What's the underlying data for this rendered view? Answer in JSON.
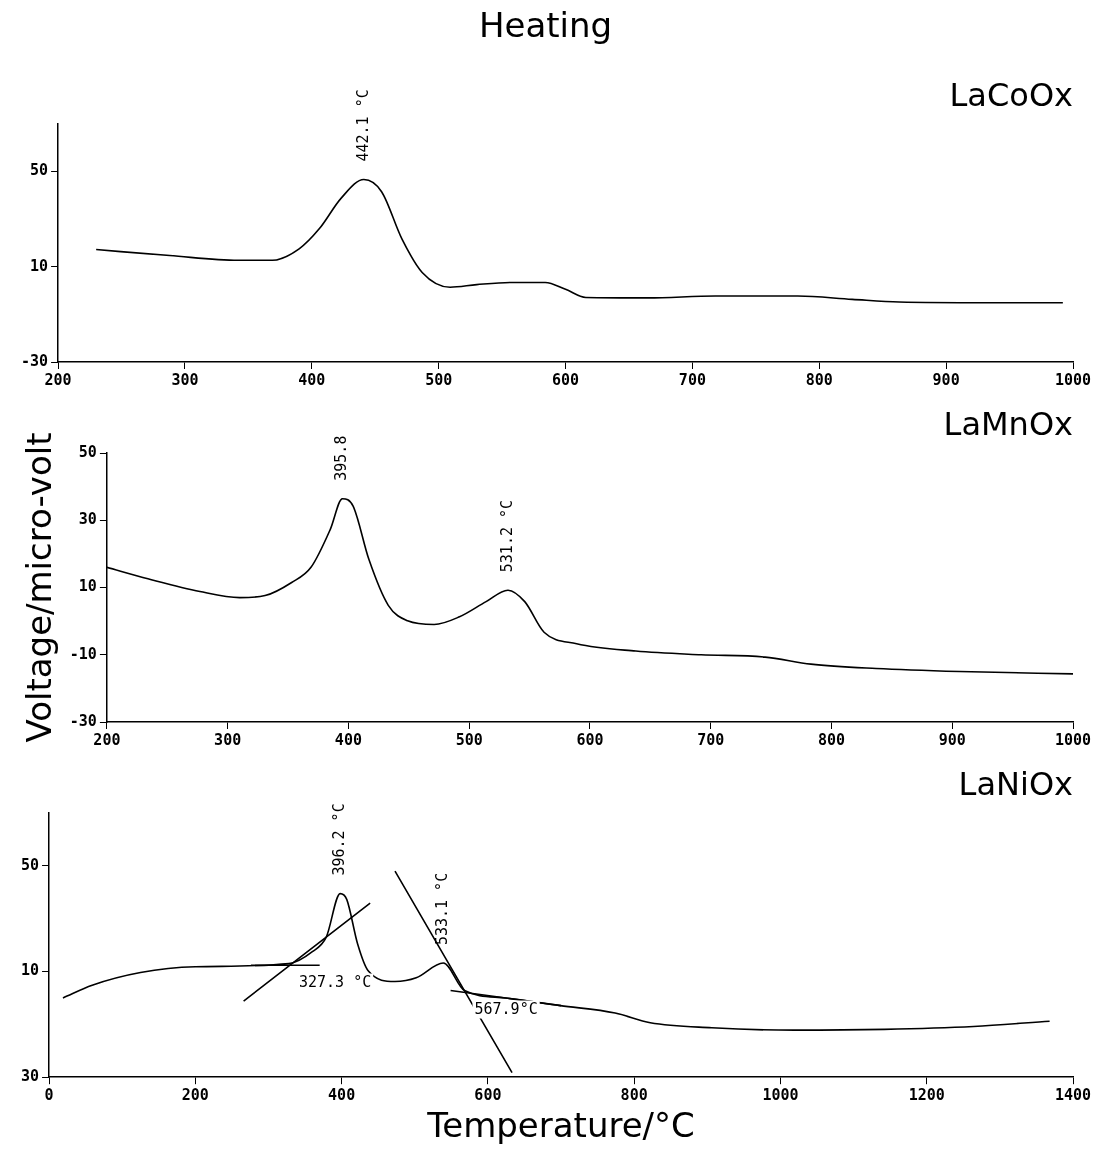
{
  "chart_data": [
    {
      "type": "line",
      "title": "Heating",
      "xlim": [
        200,
        1000
      ],
      "xticks": [
        200,
        300,
        400,
        500,
        600,
        700,
        800,
        900,
        1000
      ],
      "ylim": [
        -30,
        70
      ],
      "yticks": [
        -30,
        10,
        50
      ],
      "grid": false,
      "legend": false,
      "marker": "none",
      "line_style": "solid",
      "series": [
        {
          "name": "LaCoOx",
          "color": "#000000",
          "x": [
            230,
            288,
            342,
            369,
            390,
            406,
            423,
            441,
            455,
            471,
            487,
            509,
            530,
            557,
            584,
            600,
            616,
            665,
            718,
            783,
            826,
            863,
            933,
            992
          ],
          "values": [
            17.2,
            14.7,
            12.7,
            12.7,
            17.5,
            26,
            38.7,
            46.6,
            41.5,
            21.7,
            7.6,
            1.4,
            2.5,
            3.4,
            3.4,
            0.5,
            -2.9,
            -3.1,
            -2.3,
            -2.3,
            -3.7,
            -4.8,
            -5.1,
            -5.1
          ]
        }
      ],
      "annotations": [
        {
          "text": "442.1 °C",
          "x": 441,
          "y": 46.6
        }
      ]
    },
    {
      "type": "line",
      "ylabel": "Voltage/micro-volt",
      "xlim": [
        200,
        1000
      ],
      "xticks": [
        200,
        300,
        400,
        500,
        600,
        700,
        800,
        900,
        1000
      ],
      "ylim": [
        -30,
        50
      ],
      "yticks": [
        -30,
        -10,
        10,
        30,
        50
      ],
      "grid": false,
      "legend": false,
      "marker": "none",
      "line_style": "solid",
      "series": [
        {
          "name": "LaMnOx",
          "color": "#000000",
          "x": [
            200,
            234,
            277,
            310,
            331,
            353,
            369,
            385,
            395,
            404,
            417,
            433,
            449,
            471,
            492,
            514,
            532,
            546,
            562,
            589,
            638,
            692,
            745,
            783,
            837,
            906,
            1000
          ],
          "values": [
            16,
            12.6,
            8.8,
            7,
            7.6,
            11.5,
            16,
            27.3,
            36.4,
            34.1,
            18.3,
            4.7,
            0.1,
            -1,
            1.3,
            5.8,
            9.2,
            5.8,
            -3.3,
            -6.7,
            -8.9,
            -10,
            -10.7,
            -12.8,
            -14.1,
            -15,
            -15.7
          ]
        }
      ],
      "annotations": [
        {
          "text": "395.8",
          "x": 395,
          "y": 36.4
        },
        {
          "text": "531.2 °C",
          "x": 532,
          "y": 9.2
        }
      ]
    },
    {
      "type": "line",
      "xlabel": "Temperature/°C",
      "xlim": [
        0,
        1400
      ],
      "xticks": [
        0,
        200,
        400,
        600,
        800,
        1000,
        1200,
        1400
      ],
      "ylim": [
        -30,
        70
      ],
      "yticks": [
        {
          "value": -30,
          "label": "30"
        },
        10,
        50
      ],
      "grid": false,
      "legend": false,
      "marker": "none",
      "line_style": "solid",
      "series": [
        {
          "name": "LaNiOx",
          "color": "#000000",
          "x": [
            19,
            59,
            125,
            200,
            328,
            360,
            379,
            398,
            407,
            422,
            436,
            473,
            502,
            539,
            568,
            624,
            699,
            774,
            822,
            906,
            1019,
            1142,
            1264,
            1368
          ],
          "values": [
            0,
            4.8,
            9.6,
            11.8,
            13,
            17.5,
            23,
            39.5,
            37.3,
            20.3,
            10.4,
            6.2,
            7.6,
            13.2,
            2.8,
            0,
            -2.9,
            -5.7,
            -9.4,
            -11.3,
            -12.2,
            -11.9,
            -10.8,
            -8.8
          ]
        },
        {
          "type": "line",
          "color": "#000000",
          "x": [
            266,
            439
          ],
          "values": [
            -1.2,
            35.9
          ]
        },
        {
          "type": "line",
          "color": "#000000",
          "x": [
            276,
            370
          ],
          "values": [
            12.4,
            12.4
          ]
        },
        {
          "type": "line",
          "color": "#000000",
          "x": [
            473,
            633
          ],
          "values": [
            48,
            -28.3
          ]
        },
        {
          "type": "line",
          "color": "#000000",
          "x": [
            549,
            700
          ],
          "values": [
            2.8,
            -2.9
          ]
        }
      ],
      "annotations": [
        {
          "text": "396.2 °C",
          "x": 398,
          "y": 39.5
        },
        {
          "text": "533.1 °C",
          "x": 539,
          "y": 13.2
        },
        {
          "text": "327.3 °C",
          "x": 328,
          "y": 13
        },
        {
          "text": "567.9°C",
          "x": 568,
          "y": 2.8
        }
      ]
    }
  ]
}
